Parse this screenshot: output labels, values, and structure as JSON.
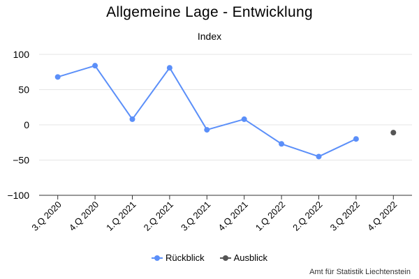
{
  "chart_data": {
    "type": "line",
    "title": "Allgemeine Lage - Entwicklung",
    "subtitle": "Index",
    "categories": [
      "3.Q 2020",
      "4.Q 2020",
      "1.Q 2021",
      "2.Q 2021",
      "3.Q 2021",
      "4.Q 2021",
      "1.Q 2022",
      "2.Q 2022",
      "3.Q 2022",
      "4.Q 2022"
    ],
    "series": [
      {
        "name": "Rückblick",
        "color": "#5b8ff9",
        "values": [
          68,
          84,
          8,
          81,
          -7,
          8,
          -27,
          -45,
          -20,
          null
        ]
      },
      {
        "name": "Ausblick",
        "color": "#555555",
        "values": [
          null,
          null,
          null,
          null,
          null,
          null,
          null,
          null,
          null,
          -11
        ]
      }
    ],
    "ylim": [
      -100,
      100
    ],
    "yticks": [
      100,
      50,
      0,
      -50,
      -100
    ],
    "ytick_labels": [
      "100",
      "50",
      "0",
      "−50",
      "−100"
    ],
    "grid": true,
    "legend_position": "bottom"
  },
  "source": "Amt für Statistik Liechtenstein"
}
